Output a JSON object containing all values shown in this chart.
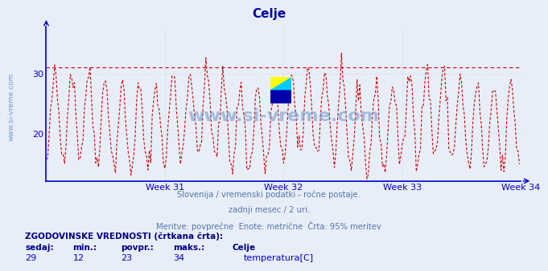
{
  "title": "Celje",
  "subtitle_lines": [
    "Slovenija / vremenski podatki - ročne postaje.",
    "zadnji mesec / 2 uri.",
    "Meritve: povprečne  Enote: metrične  Črta: 95% meritev"
  ],
  "week_labels": [
    "Week 31",
    "Week 32",
    "Week 33",
    "Week 34"
  ],
  "yticks": [
    20,
    30
  ],
  "ymin": 12,
  "ymax": 38,
  "xmin": 0,
  "xmax": 336,
  "avg_line_y": 31.2,
  "avg_line_color": "#cc0000",
  "line_color": "#cc0000",
  "axis_color": "#0000cc",
  "background_color": "#e8eef8",
  "plot_bg_color": "#e8eef8",
  "title_color": "#0000aa",
  "subtitle_color": "#5577aa",
  "watermark_color": "#7799cc",
  "stats_label_color": "#000088",
  "stats_value_color": "#0000cc",
  "sedaj": 29,
  "min_val": 12,
  "povpr_val": 23,
  "maks_val": 34,
  "legend_label": "temperatura[C]",
  "legend_color": "#cc0000",
  "sidebar_text": "www.si-vreme.com",
  "week31_x": 84,
  "week32_x": 168,
  "week33_x": 252,
  "week34_x": 336,
  "grid_color": "#ccccdd",
  "logo_yellow": "#ffff00",
  "logo_cyan": "#00ccff",
  "logo_blue": "#0000aa"
}
